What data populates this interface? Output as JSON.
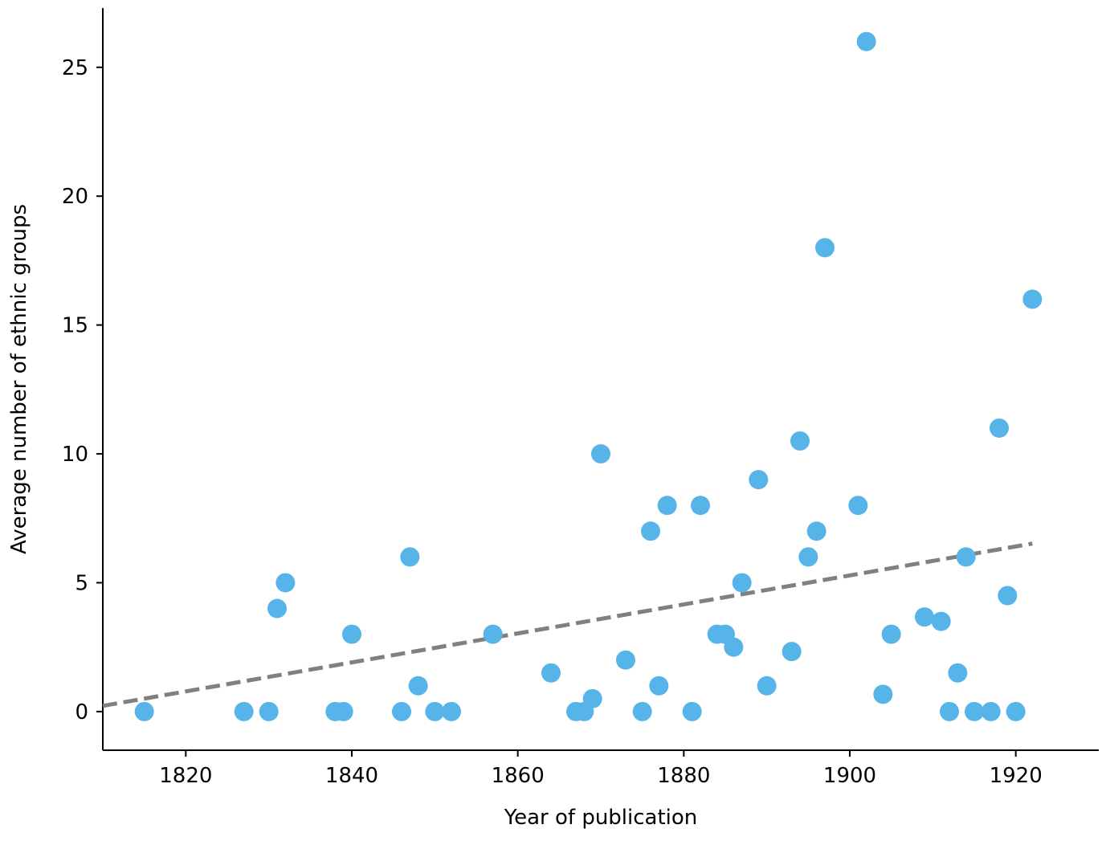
{
  "chart_data": {
    "type": "scatter",
    "xlabel": "Year of publication",
    "ylabel": "Average number of ethnic groups",
    "xlim": [
      1810,
      1930
    ],
    "xticks": [
      1820,
      1840,
      1860,
      1880,
      1900,
      1920
    ],
    "ylim": [
      -1.5,
      27.3
    ],
    "yticks": [
      0,
      5,
      10,
      15,
      20,
      25
    ],
    "grid": false,
    "series": [
      {
        "color": "#56b4e9",
        "x": [
          1815,
          1827,
          1830,
          1831,
          1832,
          1838,
          1839,
          1840,
          1846,
          1847,
          1848,
          1850,
          1852,
          1857,
          1864,
          1867,
          1868,
          1869,
          1870,
          1873,
          1875,
          1876,
          1877,
          1878,
          1881,
          1882,
          1884,
          1885,
          1886,
          1887,
          1889,
          1890,
          1893,
          1894,
          1895,
          1896,
          1897,
          1901,
          1902,
          1904,
          1905,
          1909,
          1911,
          1912,
          1913,
          1914,
          1915,
          1917,
          1918,
          1919,
          1920,
          1922
        ],
        "values": [
          0,
          0,
          0,
          4,
          5,
          0,
          0,
          3,
          0,
          6,
          1,
          0,
          0,
          3,
          1.5,
          0,
          0,
          0.5,
          10,
          2,
          0,
          7,
          1,
          8,
          0,
          8,
          3,
          3,
          2.5,
          5,
          9,
          1,
          2.33,
          10.5,
          6,
          7,
          18,
          8,
          26,
          0.67,
          3,
          3.67,
          3.5,
          0,
          1.5,
          6,
          0,
          0,
          11,
          4.5,
          0,
          16
        ]
      }
    ],
    "trend": {
      "color": "#808080",
      "x": [
        1810,
        1922
      ],
      "values": [
        0.22,
        6.52
      ]
    }
  }
}
